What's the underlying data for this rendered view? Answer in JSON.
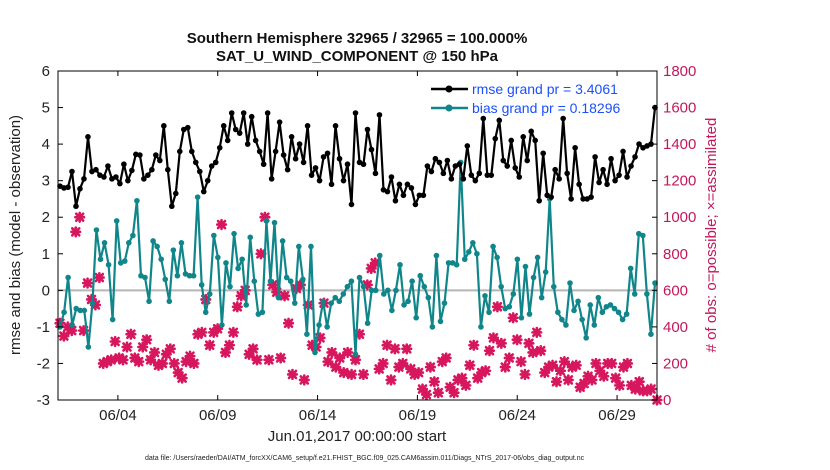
{
  "chart_data": {
    "type": "line",
    "title": "Southern Hemisphere 32965 / 32965 = 100.000%",
    "subtitle": "SAT_U_WIND_COMPONENT @ 150 hPa",
    "xlabel": "Jun.01,2017 00:00:00 start",
    "ylabel": "rmse and bias (model - observation)",
    "ylabel_right": "# of obs: o=possible; ×=assimilated",
    "x_ticks": [
      "06/04",
      "06/09",
      "06/14",
      "06/19",
      "06/24",
      "06/29"
    ],
    "x_tick_days": [
      3,
      8,
      13,
      18,
      23,
      28
    ],
    "xlim": [
      0.0,
      30.0
    ],
    "ylim": [
      -3,
      6
    ],
    "y_ticks": [
      -3,
      -2,
      -1,
      0,
      1,
      2,
      3,
      4,
      5,
      6
    ],
    "ylim_right": [
      0,
      1800
    ],
    "y_ticks_right": [
      0,
      200,
      400,
      600,
      800,
      1000,
      1200,
      1400,
      1600,
      1800
    ],
    "legend_position": "top-right",
    "footnote": "data file: /Users/raeder/DAI/ATM_forcXX/CAM6_setup/f.e21.FHIST_BGC.f09_025.CAM6assim.011/Diags_NTrS_2017-06/obs_diag_output.nc",
    "colors": {
      "rmse": "#000000",
      "bias": "#10868a",
      "obs": "#d6175e",
      "zero_line": "#b5b5b5"
    },
    "series": [
      {
        "name": "rmse grand pr = 3.4061",
        "values": [
          2.85,
          2.8,
          2.82,
          3.25,
          2.3,
          2.78,
          3.05,
          4.2,
          3.25,
          3.3,
          3.15,
          3.1,
          3.4,
          3.05,
          3.1,
          2.92,
          3.45,
          3.0,
          3.28,
          3.72,
          3.7,
          3.05,
          3.15,
          3.3,
          3.7,
          3.55,
          4.5,
          3.3,
          2.3,
          2.65,
          3.8,
          4.4,
          4.45,
          3.8,
          3.5,
          3.25,
          2.7,
          3.0,
          3.4,
          3.5,
          3.9,
          4.5,
          4.1,
          4.85,
          4.4,
          4.3,
          4.85,
          4.0,
          4.75,
          4.1,
          3.8,
          3.45,
          4.85,
          3.05,
          3.8,
          4.6,
          3.7,
          3.3,
          4.2,
          3.6,
          4.0,
          3.5,
          4.5,
          3.15,
          3.35,
          3.0,
          3.65,
          3.75,
          2.9,
          4.5,
          3.6,
          3.0,
          3.45,
          2.35,
          4.85,
          3.5,
          3.45,
          4.4,
          3.85,
          3.2,
          4.8,
          2.75,
          2.7,
          3.1,
          2.45,
          2.9,
          2.6,
          2.9,
          2.8,
          2.35,
          2.6,
          2.6,
          3.4,
          3.25,
          3.6,
          3.5,
          3.2,
          3.55,
          3.05,
          3.4,
          3.45,
          3.05,
          3.95,
          3.15,
          3.0,
          3.2,
          4.7,
          3.15,
          3.15,
          4.15,
          4.65,
          3.55,
          3.4,
          4.1,
          3.35,
          3.1,
          4.2,
          3.55,
          4.35,
          4.1,
          2.45,
          3.75,
          2.6,
          2.55,
          3.3,
          3.05,
          4.7,
          3.2,
          2.5,
          3.9,
          2.9,
          2.5,
          2.5,
          2.55,
          3.65,
          2.95,
          3.3,
          2.9,
          3.6,
          3.0,
          3.15,
          3.8,
          3.1,
          3.4,
          3.65,
          4.0,
          3.9,
          3.95,
          4.0,
          5.0
        ],
        "color": "#000000"
      },
      {
        "name": "bias grand pr = 0.18296",
        "values": [
          -1.0,
          -0.6,
          0.35,
          -0.95,
          -0.5,
          -0.55,
          -0.55,
          -1.55,
          -0.35,
          1.65,
          0.85,
          1.3,
          0.7,
          -0.8,
          1.9,
          0.75,
          0.8,
          1.3,
          1.5,
          2.45,
          0.4,
          0.35,
          -0.3,
          1.35,
          1.2,
          0.85,
          0.3,
          -0.3,
          1.1,
          0.4,
          1.3,
          0.45,
          0.4,
          0.4,
          2.55,
          0.15,
          -0.6,
          -0.1,
          1.5,
          0.9,
          -0.95,
          0.75,
          0.1,
          1.55,
          0.6,
          0.85,
          -0.4,
          1.45,
          0.25,
          -0.65,
          -0.6,
          1.9,
          0.25,
          1.85,
          -0.2,
          1.35,
          0.35,
          0.25,
          -0.35,
          1.2,
          0.3,
          -1.2,
          1.2,
          -1.7,
          -0.95,
          -0.3,
          -1.0,
          -0.35,
          -0.2,
          -0.3,
          -0.1,
          0.1,
          0.25,
          -1.75,
          0.35,
          0.1,
          -0.9,
          0.0,
          0.0,
          0.95,
          -0.1,
          0.0,
          -0.55,
          0.0,
          0.7,
          -0.4,
          -0.3,
          0.25,
          -0.75,
          0.4,
          0.1,
          -0.2,
          -1.0,
          0.95,
          -0.85,
          -0.35,
          0.75,
          0.75,
          0.7,
          3.5,
          0.85,
          1.05,
          1.3,
          1.0,
          -1.0,
          -0.15,
          -0.6,
          1.2,
          0.9,
          0.1,
          -0.5,
          -0.45,
          -0.1,
          0.85,
          -0.75,
          0.65,
          -0.65,
          0.35,
          0.9,
          -0.2,
          0.5,
          2.5,
          0.1,
          -0.6,
          -0.8,
          -0.95,
          0.2,
          -0.55,
          -0.3,
          -0.8,
          -1.3,
          -0.4,
          -0.95,
          -0.2,
          -0.6,
          -0.45,
          -0.4,
          -0.5,
          -0.6,
          -0.8,
          -0.65,
          0.6,
          -0.1,
          1.55,
          1.5,
          -0.1,
          -1.2,
          0.2
        ],
        "color": "#10868a"
      },
      {
        "name": "# of obs assimilated",
        "values": [
          420,
          350,
          400,
          380,
          920,
          1000,
          380,
          640,
          550,
          520,
          670,
          200,
          210,
          220,
          320,
          230,
          220,
          290,
          360,
          230,
          210,
          290,
          330,
          220,
          260,
          190,
          200,
          250,
          280,
          200,
          150,
          120,
          210,
          240,
          200,
          360,
          370,
          550,
          300,
          370,
          390,
          960,
          260,
          300,
          370,
          510,
          570,
          600,
          250,
          280,
          220,
          800,
          1000,
          220,
          630,
          590,
          230,
          570,
          420,
          140,
          610,
          630,
          110,
          520,
          300,
          290,
          340,
          530,
          210,
          260,
          180,
          230,
          150,
          260,
          140,
          220,
          360,
          140,
          630,
          720,
          750,
          170,
          200,
          300,
          110,
          280,
          180,
          200,
          280,
          170,
          140,
          150,
          60,
          30,
          180,
          100,
          40,
          210,
          230,
          70,
          40,
          110,
          120,
          80,
          190,
          300,
          120,
          150,
          160,
          270,
          340,
          510,
          310,
          180,
          230,
          450,
          330,
          210,
          140,
          310,
          260,
          370,
          270,
          150,
          180,
          190,
          100,
          160,
          210,
          110,
          180,
          190,
          70,
          90,
          130,
          110,
          200,
          160,
          130,
          200,
          200,
          120,
          80,
          180,
          200,
          80,
          60,
          100,
          50,
          50,
          60,
          0
        ],
        "color": "#d6175e"
      }
    ]
  }
}
